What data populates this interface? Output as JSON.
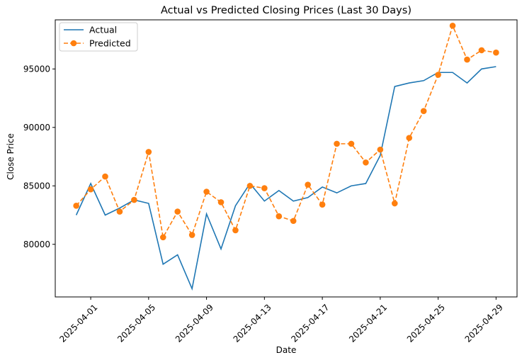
{
  "chart_data": {
    "type": "line",
    "title": "Actual vs Predicted Closing Prices (Last 30 Days)",
    "xlabel": "Date",
    "ylabel": "Close Price",
    "x": [
      "2025-03-31",
      "2025-04-01",
      "2025-04-02",
      "2025-04-03",
      "2025-04-04",
      "2025-04-05",
      "2025-04-06",
      "2025-04-07",
      "2025-04-08",
      "2025-04-09",
      "2025-04-10",
      "2025-04-11",
      "2025-04-12",
      "2025-04-13",
      "2025-04-14",
      "2025-04-15",
      "2025-04-16",
      "2025-04-17",
      "2025-04-18",
      "2025-04-19",
      "2025-04-20",
      "2025-04-21",
      "2025-04-22",
      "2025-04-23",
      "2025-04-24",
      "2025-04-25",
      "2025-04-26",
      "2025-04-27",
      "2025-04-28",
      "2025-04-29"
    ],
    "x_ticks": [
      "2025-04-01",
      "2025-04-05",
      "2025-04-09",
      "2025-04-13",
      "2025-04-17",
      "2025-04-21",
      "2025-04-25",
      "2025-04-29"
    ],
    "y_ticks": [
      80000,
      85000,
      90000,
      95000
    ],
    "y_tick_labels": [
      "80000",
      "85000",
      "90000",
      "95000"
    ],
    "ylim": [
      75500,
      99200
    ],
    "legend_position": "upper-left",
    "series": [
      {
        "name": "Actual",
        "color": "#1f77b4",
        "style": "solid",
        "values": [
          82500,
          85200,
          82500,
          83100,
          83800,
          83500,
          78300,
          79100,
          76200,
          82600,
          79600,
          83300,
          85200,
          83700,
          84600,
          83700,
          84000,
          84900,
          84400,
          85000,
          85200,
          87600,
          93500,
          93800,
          94000,
          94700,
          94700,
          93800,
          95000,
          95200
        ]
      },
      {
        "name": "Predicted",
        "color": "#ff7f0e",
        "style": "dashed",
        "marker": "circle",
        "values": [
          83300,
          84700,
          85800,
          82800,
          83800,
          87900,
          80600,
          82800,
          80800,
          84500,
          83600,
          81200,
          85000,
          84800,
          82400,
          82000,
          85100,
          83400,
          88600,
          88600,
          87000,
          88100,
          83500,
          89100,
          91400,
          94500,
          98700,
          95800,
          96600,
          96400
        ]
      }
    ]
  }
}
